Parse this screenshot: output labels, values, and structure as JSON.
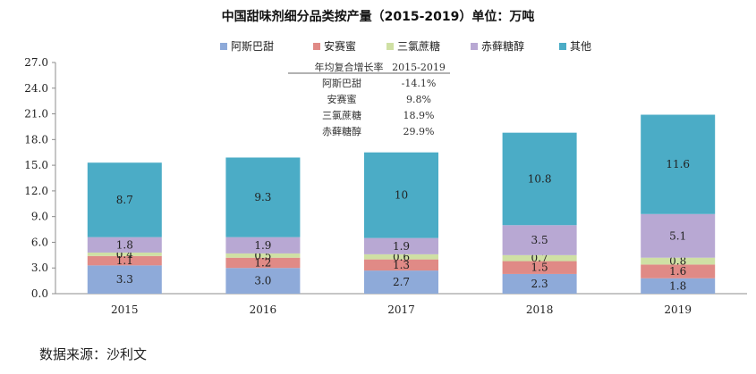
{
  "chart_data": {
    "type": "bar",
    "stacked": true,
    "title": "中国甜味剂细分品类按产量（2015-2019）单位：万吨",
    "categories": [
      "2015",
      "2016",
      "2017",
      "2018",
      "2019"
    ],
    "series": [
      {
        "name": "阿斯巴甜",
        "color": "#8eaad9",
        "values": [
          3.3,
          3.0,
          2.7,
          2.3,
          1.8
        ]
      },
      {
        "name": "安赛蜜",
        "color": "#e08a86",
        "values": [
          1.1,
          1.2,
          1.3,
          1.5,
          1.6
        ]
      },
      {
        "name": "三氯蔗糖",
        "color": "#cfe0a4",
        "values": [
          0.4,
          0.5,
          0.6,
          0.7,
          0.8
        ]
      },
      {
        "name": "赤藓糖醇",
        "color": "#b8a8d3",
        "values": [
          1.8,
          1.9,
          1.9,
          3.5,
          5.1
        ]
      },
      {
        "name": "其他",
        "color": "#4bacc6",
        "values": [
          8.7,
          9.3,
          10,
          10.8,
          11.6
        ]
      }
    ],
    "data_labels": [
      [
        "3.3",
        "3.0",
        "2.7",
        "2.3",
        "1.8"
      ],
      [
        "1.1",
        "1.2",
        "1.3",
        "1.5",
        "1.6"
      ],
      [
        "0.4",
        "0.5",
        "0.6",
        "0.7",
        "0.8"
      ],
      [
        "1.8",
        "1.9",
        "1.9",
        "3.5",
        "5.1"
      ],
      [
        "8.7",
        "9.3",
        "10",
        "10.8",
        "11.6"
      ]
    ],
    "ylim": [
      0,
      27
    ],
    "yticks": [
      "0.0",
      "3.0",
      "6.0",
      "9.0",
      "12.0",
      "15.0",
      "18.0",
      "21.0",
      "24.0",
      "27.0"
    ],
    "legend_position": "top-right",
    "annotation_table": {
      "header": [
        "年均复合增长率",
        "2015-2019"
      ],
      "rows": [
        [
          "阿斯巴甜",
          "-14.1%"
        ],
        [
          "安赛蜜",
          "9.8%"
        ],
        [
          "三氯蔗糖",
          "18.9%"
        ],
        [
          "赤藓糖醇",
          "29.9%"
        ]
      ]
    }
  },
  "source": "数据来源：沙利文"
}
